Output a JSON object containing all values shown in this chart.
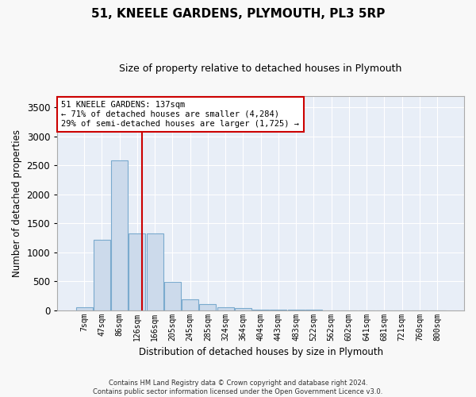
{
  "title": "51, KNEELE GARDENS, PLYMOUTH, PL3 5RP",
  "subtitle": "Size of property relative to detached houses in Plymouth",
  "xlabel": "Distribution of detached houses by size in Plymouth",
  "ylabel": "Number of detached properties",
  "bar_color": "#ccdaeb",
  "bar_edge_color": "#7aaace",
  "background_color": "#e8eef7",
  "grid_color": "#ffffff",
  "categories": [
    "7sqm",
    "47sqm",
    "86sqm",
    "126sqm",
    "166sqm",
    "205sqm",
    "245sqm",
    "285sqm",
    "324sqm",
    "364sqm",
    "404sqm",
    "443sqm",
    "483sqm",
    "522sqm",
    "562sqm",
    "602sqm",
    "641sqm",
    "681sqm",
    "721sqm",
    "760sqm",
    "800sqm"
  ],
  "values": [
    50,
    1220,
    2580,
    1330,
    1330,
    490,
    180,
    100,
    50,
    30,
    10,
    3,
    3,
    2,
    1,
    0,
    0,
    0,
    0,
    0,
    0
  ],
  "ylim": [
    0,
    3700
  ],
  "yticks": [
    0,
    500,
    1000,
    1500,
    2000,
    2500,
    3000,
    3500
  ],
  "property_label": "51 KNEELE GARDENS: 137sqm",
  "annotation_line1": "← 71% of detached houses are smaller (4,284)",
  "annotation_line2": "29% of semi-detached houses are larger (1,725) →",
  "red_line_color": "#cc0000",
  "annotation_box_color": "#cc0000",
  "footer_line1": "Contains HM Land Registry data © Crown copyright and database right 2024.",
  "footer_line2": "Contains public sector information licensed under the Open Government Licence v3.0.",
  "fig_width": 6.0,
  "fig_height": 5.0,
  "fig_dpi": 100
}
